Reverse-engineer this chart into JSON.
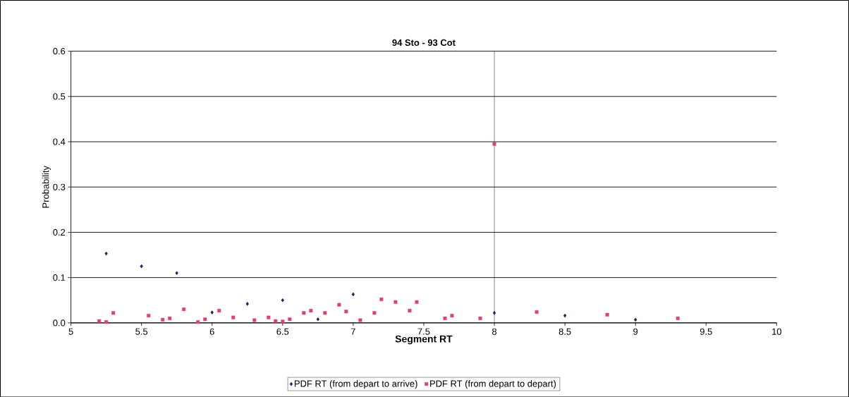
{
  "chart_data": {
    "type": "scatter",
    "title": "94 Sto - 93 Cot",
    "xlabel": "Segment RT",
    "ylabel": "Probability",
    "xlim": [
      5,
      10
    ],
    "xticks": [
      5,
      5.5,
      6,
      6.5,
      7,
      7.5,
      8,
      8.5,
      9,
      9.5,
      10
    ],
    "ylim": [
      0,
      0.6
    ],
    "yticks": [
      {
        "value": 0,
        "label": "0.0"
      },
      0.1,
      0.2,
      0.3,
      0.4,
      0.5,
      0.6
    ],
    "grid": "y",
    "legend": "bottom",
    "ref_lines": [
      {
        "axis": "x",
        "value": 8,
        "color": "#000000"
      }
    ],
    "series": [
      {
        "name": "PDF RT (from depart to arrive)",
        "color": "#1a1f5e",
        "marker": "diamond",
        "x": [
          5.25,
          5.5,
          5.75,
          6.0,
          6.25,
          6.5,
          6.75,
          7.0,
          8.0,
          8.5,
          9.0
        ],
        "values": [
          0.153,
          0.125,
          0.11,
          0.023,
          0.042,
          0.05,
          0.008,
          0.063,
          0.022,
          0.016,
          0.007
        ]
      },
      {
        "name": "PDF RT (from depart to depart)",
        "color": "#e0406a",
        "marker": "square",
        "x": [
          5.2,
          5.25,
          5.3,
          5.55,
          5.65,
          5.7,
          5.8,
          5.9,
          5.95,
          6.05,
          6.15,
          6.3,
          6.4,
          6.45,
          6.5,
          6.55,
          6.65,
          6.7,
          6.8,
          6.9,
          6.95,
          7.05,
          7.15,
          7.2,
          7.3,
          7.4,
          7.45,
          7.65,
          7.7,
          7.9,
          8.0,
          8.3,
          8.8,
          9.3
        ],
        "values": [
          0.004,
          0.002,
          0.022,
          0.016,
          0.007,
          0.01,
          0.03,
          0.002,
          0.008,
          0.027,
          0.012,
          0.006,
          0.012,
          0.004,
          0.003,
          0.008,
          0.022,
          0.027,
          0.022,
          0.04,
          0.025,
          0.006,
          0.022,
          0.052,
          0.046,
          0.027,
          0.046,
          0.01,
          0.016,
          0.01,
          0.395,
          0.024,
          0.018,
          0.01
        ]
      }
    ]
  }
}
